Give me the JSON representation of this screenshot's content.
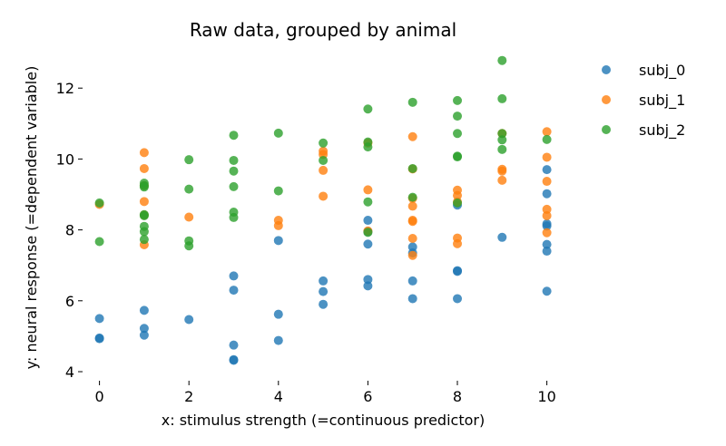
{
  "chart_data": {
    "type": "scatter",
    "title": "Raw data, grouped by animal",
    "xlabel": "x: stimulus strength (=continuous predictor)",
    "ylabel": "y: neural response (=dependent variable)",
    "xlim": [
      -0.5,
      10.5
    ],
    "ylim": [
      3.8,
      13.0
    ],
    "xticks": [
      0,
      2,
      4,
      6,
      8,
      10
    ],
    "yticks": [
      4,
      6,
      8,
      10,
      12
    ],
    "grid": false,
    "legend_position": "top-right",
    "series": [
      {
        "name": "subj_0",
        "color": "#1f77b4",
        "points": [
          [
            0,
            5.5
          ],
          [
            0,
            4.95
          ],
          [
            0,
            4.93
          ],
          [
            1,
            5.73
          ],
          [
            1,
            5.22
          ],
          [
            1,
            5.03
          ],
          [
            2,
            5.47
          ],
          [
            3,
            6.7
          ],
          [
            3,
            6.3
          ],
          [
            3,
            4.75
          ],
          [
            3,
            4.34
          ],
          [
            3,
            4.32
          ],
          [
            4,
            7.7
          ],
          [
            4,
            5.62
          ],
          [
            4,
            4.88
          ],
          [
            5,
            6.56
          ],
          [
            5,
            6.26
          ],
          [
            5,
            5.9
          ],
          [
            6,
            8.27
          ],
          [
            6,
            7.95
          ],
          [
            6,
            7.6
          ],
          [
            6,
            6.6
          ],
          [
            6,
            6.42
          ],
          [
            7,
            7.52
          ],
          [
            7,
            7.35
          ],
          [
            7,
            6.56
          ],
          [
            7,
            6.06
          ],
          [
            8,
            8.7
          ],
          [
            8,
            6.85
          ],
          [
            8,
            6.83
          ],
          [
            8,
            6.06
          ],
          [
            9,
            7.79
          ],
          [
            10,
            9.7
          ],
          [
            10,
            9.02
          ],
          [
            10,
            8.17
          ],
          [
            10,
            8.11
          ],
          [
            10,
            7.59
          ],
          [
            10,
            7.4
          ],
          [
            10,
            6.27
          ]
        ]
      },
      {
        "name": "subj_1",
        "color": "#ff7f0e",
        "points": [
          [
            0,
            8.72
          ],
          [
            1,
            10.18
          ],
          [
            1,
            9.73
          ],
          [
            1,
            9.25
          ],
          [
            1,
            8.8
          ],
          [
            1,
            8.42
          ],
          [
            1,
            7.58
          ],
          [
            2,
            8.36
          ],
          [
            4,
            8.27
          ],
          [
            4,
            8.12
          ],
          [
            5,
            10.22
          ],
          [
            5,
            10.13
          ],
          [
            5,
            9.68
          ],
          [
            5,
            8.95
          ],
          [
            6,
            10.45
          ],
          [
            6,
            9.13
          ],
          [
            6,
            7.97
          ],
          [
            7,
            10.63
          ],
          [
            7,
            9.72
          ],
          [
            7,
            8.89
          ],
          [
            7,
            8.67
          ],
          [
            7,
            8.27
          ],
          [
            7,
            8.24
          ],
          [
            7,
            7.76
          ],
          [
            7,
            7.28
          ],
          [
            8,
            9.12
          ],
          [
            8,
            8.97
          ],
          [
            8,
            8.79
          ],
          [
            8,
            7.77
          ],
          [
            8,
            7.61
          ],
          [
            9,
            10.72
          ],
          [
            9,
            9.71
          ],
          [
            9,
            9.66
          ],
          [
            9,
            9.4
          ],
          [
            10,
            10.77
          ],
          [
            10,
            10.05
          ],
          [
            10,
            9.37
          ],
          [
            10,
            8.58
          ],
          [
            10,
            8.4
          ],
          [
            10,
            7.92
          ]
        ]
      },
      {
        "name": "subj_2",
        "color": "#2ca02c",
        "points": [
          [
            0,
            8.76
          ],
          [
            0,
            7.67
          ],
          [
            1,
            9.32
          ],
          [
            1,
            9.25
          ],
          [
            1,
            9.21
          ],
          [
            1,
            8.43
          ],
          [
            1,
            8.4
          ],
          [
            1,
            8.1
          ],
          [
            1,
            7.95
          ],
          [
            1,
            7.73
          ],
          [
            2,
            9.98
          ],
          [
            2,
            9.15
          ],
          [
            2,
            7.69
          ],
          [
            2,
            7.55
          ],
          [
            3,
            10.67
          ],
          [
            3,
            9.96
          ],
          [
            3,
            9.66
          ],
          [
            3,
            9.22
          ],
          [
            3,
            8.5
          ],
          [
            3,
            8.35
          ],
          [
            4,
            10.73
          ],
          [
            4,
            9.1
          ],
          [
            5,
            10.45
          ],
          [
            5,
            9.96
          ],
          [
            6,
            11.41
          ],
          [
            6,
            10.48
          ],
          [
            6,
            10.34
          ],
          [
            6,
            8.79
          ],
          [
            6,
            7.93
          ],
          [
            7,
            11.6
          ],
          [
            7,
            9.73
          ],
          [
            7,
            8.92
          ],
          [
            8,
            11.65
          ],
          [
            8,
            11.21
          ],
          [
            8,
            10.72
          ],
          [
            8,
            10.08
          ],
          [
            8,
            10.06
          ],
          [
            8,
            8.76
          ],
          [
            9,
            12.78
          ],
          [
            9,
            11.7
          ],
          [
            9,
            10.72
          ],
          [
            9,
            10.54
          ],
          [
            9,
            10.27
          ],
          [
            10,
            10.55
          ]
        ]
      }
    ]
  }
}
